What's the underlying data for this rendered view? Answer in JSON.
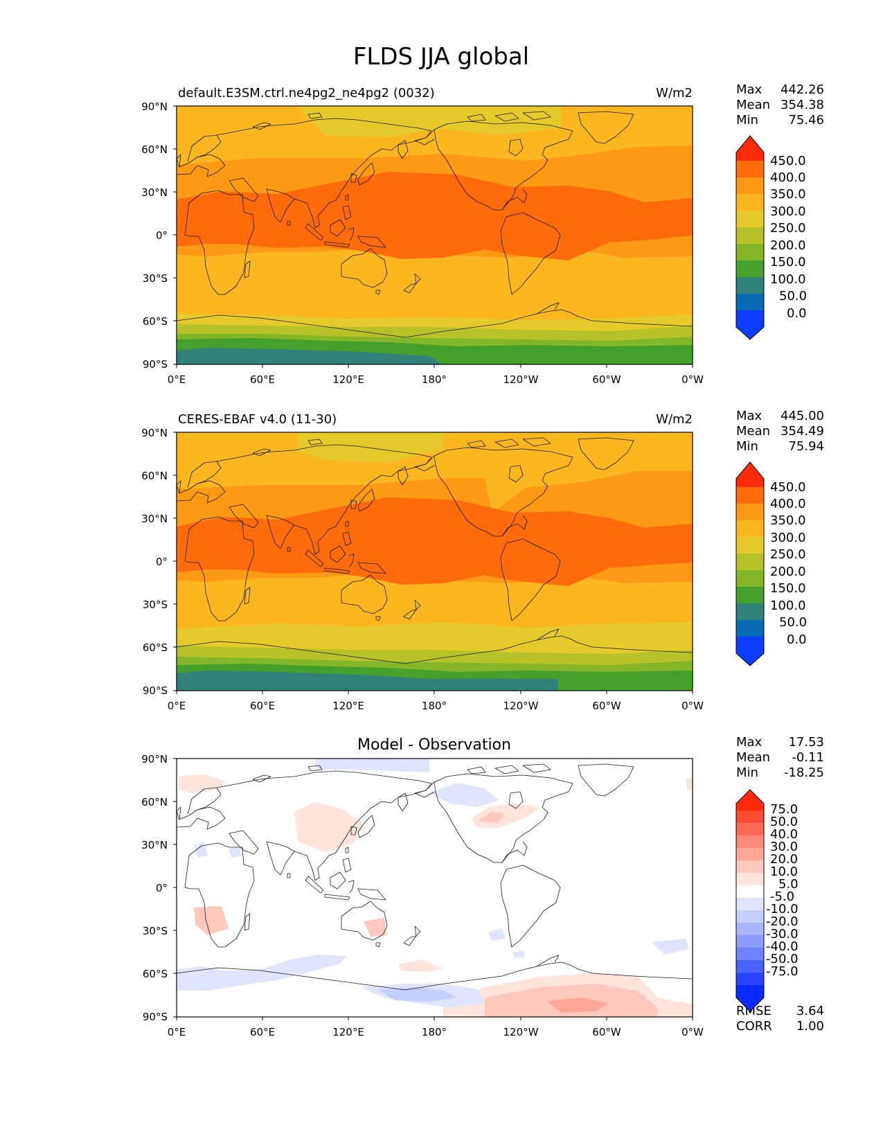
{
  "figure": {
    "title": "FLDS JJA global"
  },
  "axes": {
    "lat_ticks": [
      "90°N",
      "60°N",
      "30°N",
      "0°",
      "30°S",
      "60°S",
      "90°S"
    ],
    "lon_ticks": [
      "0°E",
      "60°E",
      "120°E",
      "180°",
      "120°W",
      "60°W",
      "0°W"
    ]
  },
  "panels": [
    {
      "id": "test",
      "left_title": "default.E3SM.ctrl.ne4pg2_ne4pg2 (0032)",
      "center_title": "",
      "units": "W/m2",
      "stats": {
        "Max": "442.26",
        "Mean": "354.38",
        "Min": "75.46"
      },
      "colorbar": {
        "ticks": [
          "450.0",
          "400.0",
          "350.0",
          "300.0",
          "250.0",
          "200.0",
          "150.0",
          "100.0",
          "50.0",
          "0.0"
        ],
        "colors": [
          "#ff2a0a",
          "#ff6a0a",
          "#ff9a14",
          "#fbb620",
          "#e6c92a",
          "#b7c228",
          "#84b62a",
          "#44a02a",
          "#30837a",
          "#0a6bb5",
          "#0a3dff"
        ]
      }
    },
    {
      "id": "reference",
      "left_title": "CERES-EBAF v4.0 (11-30)",
      "center_title": "",
      "units": "W/m2",
      "stats": {
        "Max": "445.00",
        "Mean": "354.49",
        "Min": "75.94"
      },
      "colorbar": {
        "ticks": [
          "450.0",
          "400.0",
          "350.0",
          "300.0",
          "250.0",
          "200.0",
          "150.0",
          "100.0",
          "50.0",
          "0.0"
        ],
        "colors": [
          "#ff2a0a",
          "#ff6a0a",
          "#ff9a14",
          "#fbb620",
          "#e6c92a",
          "#b7c228",
          "#84b62a",
          "#44a02a",
          "#30837a",
          "#0a6bb5",
          "#0a3dff"
        ]
      }
    },
    {
      "id": "difference",
      "left_title": "",
      "center_title": "Model - Observation",
      "units": "",
      "stats": {
        "Max": "17.53",
        "Mean": "-0.11",
        "Min": "-18.25"
      },
      "extra_stats": {
        "RMSE": "3.64",
        "CORR": "1.00"
      },
      "colorbar": {
        "ticks": [
          "75.0",
          "50.0",
          "40.0",
          "30.0",
          "20.0",
          "10.0",
          "5.0",
          "-5.0",
          "-10.0",
          "-20.0",
          "-30.0",
          "-40.0",
          "-50.0",
          "-75.0"
        ],
        "colors": [
          "#ff2a0a",
          "#ff4a32",
          "#ff6a55",
          "#ff8a78",
          "#ffa898",
          "#ffc8bc",
          "#ffe4de",
          "#ffffff",
          "#dfe5ff",
          "#c4ceff",
          "#a8b5ff",
          "#8c9cff",
          "#6e82ff",
          "#4a63ff",
          "#2a45ff",
          "#0a2bff"
        ]
      }
    }
  ]
}
